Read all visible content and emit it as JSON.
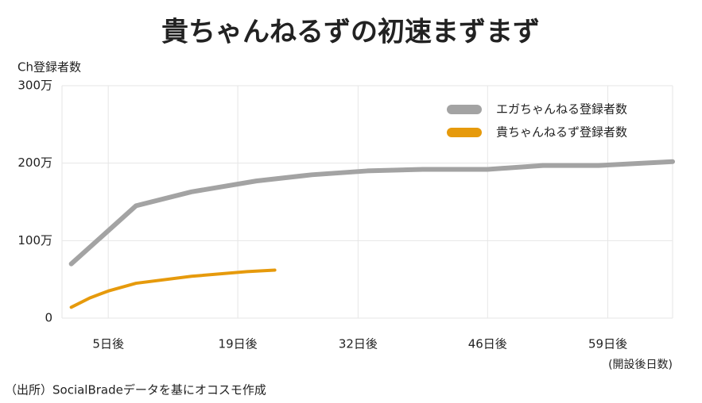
{
  "chart_data": {
    "type": "line",
    "title": "貴ちゃんねるずの初速まずまず",
    "y_label": "Ch登録者数",
    "x_label": "(開設後日数)",
    "source": "（出所）SocialBradeデータを基にオコスモ作成",
    "xlim": [
      0,
      66
    ],
    "xticks": [
      {
        "value": 5,
        "label": "5日後"
      },
      {
        "value": 19,
        "label": "19日後"
      },
      {
        "value": 32,
        "label": "32日後"
      },
      {
        "value": 46,
        "label": "46日後"
      },
      {
        "value": 59,
        "label": "59日後"
      }
    ],
    "ylim": [
      0,
      300
    ],
    "yticks": [
      0,
      {
        "value": 100,
        "label": "100万"
      },
      {
        "value": 200,
        "label": "200万"
      },
      {
        "value": 300,
        "label": "300万"
      }
    ],
    "grid": true,
    "legend": "top-right",
    "series": [
      {
        "name": "エガちゃんねる登録者数",
        "color": "#a3a3a3",
        "x": [
          1,
          8,
          14,
          21,
          27,
          33,
          39,
          46,
          52,
          58,
          66
        ],
        "values": [
          70,
          145,
          163,
          177,
          185,
          190,
          192,
          192,
          197,
          197,
          202
        ]
      },
      {
        "name": "貴ちゃんねるず登録者数",
        "color": "#e69a0c",
        "x": [
          1,
          3,
          5,
          8,
          14,
          20,
          23
        ],
        "values": [
          14,
          26,
          35,
          45,
          54,
          60,
          62
        ]
      }
    ]
  }
}
